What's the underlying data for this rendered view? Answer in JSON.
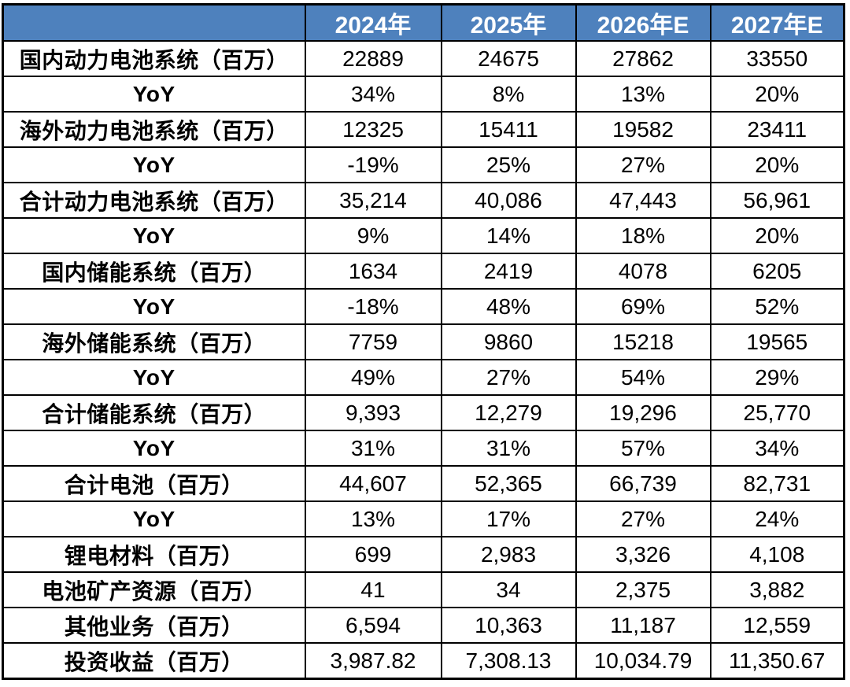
{
  "chart_data": {
    "type": "table",
    "title": "",
    "columns": [
      "",
      "2024年",
      "2025年",
      "2026年E",
      "2027年E"
    ],
    "rows": [
      {
        "label": "国内动力电池系统（百万）",
        "values": [
          "22889",
          "24675",
          "27862",
          "33550"
        ]
      },
      {
        "label": "YoY",
        "values": [
          "34%",
          "8%",
          "13%",
          "20%"
        ]
      },
      {
        "label": "海外动力电池系统（百万）",
        "values": [
          "12325",
          "15411",
          "19582",
          "23411"
        ]
      },
      {
        "label": "YoY",
        "values": [
          "-19%",
          "25%",
          "27%",
          "20%"
        ]
      },
      {
        "label": "合计动力电池系统（百万）",
        "values": [
          "35,214",
          "40,086",
          "47,443",
          "56,961"
        ]
      },
      {
        "label": "YoY",
        "values": [
          "9%",
          "14%",
          "18%",
          "20%"
        ]
      },
      {
        "label": "国内储能系统（百万）",
        "values": [
          "1634",
          "2419",
          "4078",
          "6205"
        ]
      },
      {
        "label": "YoY",
        "values": [
          "-18%",
          "48%",
          "69%",
          "52%"
        ]
      },
      {
        "label": "海外储能系统（百万）",
        "values": [
          "7759",
          "9860",
          "15218",
          "19565"
        ]
      },
      {
        "label": "YoY",
        "values": [
          "49%",
          "27%",
          "54%",
          "29%"
        ]
      },
      {
        "label": "合计储能系统（百万）",
        "values": [
          "9,393",
          "12,279",
          "19,296",
          "25,770"
        ]
      },
      {
        "label": "YoY",
        "values": [
          "31%",
          "31%",
          "57%",
          "34%"
        ]
      },
      {
        "label": "合计电池（百万）",
        "values": [
          "44,607",
          "52,365",
          "66,739",
          "82,731"
        ]
      },
      {
        "label": "YoY",
        "values": [
          "13%",
          "17%",
          "27%",
          "24%"
        ]
      },
      {
        "label": "锂电材料（百万）",
        "values": [
          "699",
          "2,983",
          "3,326",
          "4,108"
        ]
      },
      {
        "label": "电池矿产资源（百万）",
        "values": [
          "41",
          "34",
          "2,375",
          "3,882"
        ]
      },
      {
        "label": "其他业务（百万）",
        "values": [
          "6,594",
          "10,363",
          "11,187",
          "12,559"
        ]
      },
      {
        "label": "投资收益（百万）",
        "values": [
          "3,987.82",
          "7,308.13",
          "10,034.79",
          "11,350.67"
        ]
      }
    ],
    "layout": {
      "grid": true,
      "header_position": "top",
      "label_column_align": "center",
      "value_align": "center"
    },
    "colors": {
      "header_bg": "#4E81BD",
      "header_text": "#FFFFFF",
      "border": "#000000",
      "cell_bg": "#FFFFFF",
      "cell_text": "#000000"
    }
  }
}
